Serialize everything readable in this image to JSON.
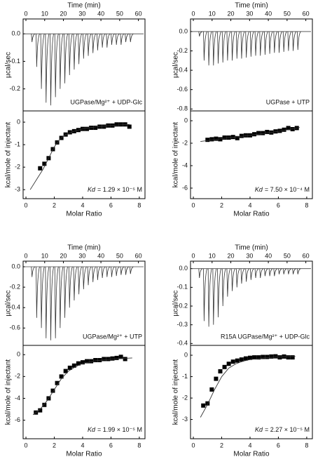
{
  "chart_data": [
    {
      "type": "peaks",
      "xlabel": "Time (min)",
      "ylabel": "µcal/sec",
      "annotation": "UGPase/Mg²⁺ + UDP-Glc",
      "xlim": [
        -1.5,
        63.5
      ],
      "xticks": [
        0,
        10,
        20,
        30,
        40,
        50,
        60
      ],
      "ylim": [
        -0.28,
        0.054
      ],
      "yticks": [
        {
          "value": 0,
          "label": "0.0"
        },
        -0.1,
        -0.2
      ],
      "x": [
        3,
        5.5,
        8,
        10.5,
        13,
        15.5,
        18,
        20.5,
        23,
        25.5,
        28,
        30.5,
        33,
        35.5,
        38,
        40.5,
        43,
        45.5,
        48,
        50.5,
        53,
        55.5
      ],
      "values": [
        -0.03,
        -0.12,
        -0.2,
        -0.25,
        -0.26,
        -0.23,
        -0.2,
        -0.18,
        -0.15,
        -0.13,
        -0.11,
        -0.09,
        -0.08,
        -0.07,
        -0.06,
        -0.05,
        -0.05,
        -0.04,
        -0.04,
        -0.04,
        -0.03,
        -0.03
      ]
    },
    {
      "type": "scatter",
      "xlabel": "Molar Ratio",
      "ylabel": "kcal/mole of injectant",
      "kd_symbol": "Kd",
      "kd_text": "= 1.29 × 10⁻⁵ M",
      "xlim": [
        -0.2,
        8.4
      ],
      "xticks": [
        0,
        2,
        4,
        6,
        8
      ],
      "ylim": [
        -3.4,
        0.5
      ],
      "yticks": [
        0,
        -1,
        -2,
        -3
      ],
      "series": [
        {
          "style": "marker",
          "x": [
            1.0,
            1.3,
            1.6,
            1.9,
            2.2,
            2.5,
            2.8,
            3.1,
            3.4,
            3.7,
            4.0,
            4.3,
            4.6,
            4.9,
            5.2,
            5.5,
            5.8,
            6.1,
            6.4,
            6.7,
            7.0,
            7.3
          ],
          "values": [
            -2.05,
            -1.85,
            -1.6,
            -1.2,
            -0.9,
            -0.7,
            -0.55,
            -0.45,
            -0.4,
            -0.35,
            -0.3,
            -0.3,
            -0.25,
            -0.25,
            -0.2,
            -0.2,
            -0.15,
            -0.15,
            -0.1,
            -0.1,
            -0.1,
            -0.2
          ]
        },
        {
          "style": "line",
          "x": [
            0.3,
            0.8,
            1.2,
            1.6,
            2.0,
            2.4,
            2.8,
            3.4,
            4,
            5,
            6,
            7.3
          ],
          "values": [
            -3.0,
            -2.5,
            -2.1,
            -1.6,
            -1.1,
            -0.75,
            -0.55,
            -0.4,
            -0.3,
            -0.2,
            -0.15,
            -0.1
          ]
        }
      ]
    },
    {
      "type": "peaks",
      "xlabel": "Time (min)",
      "ylabel": "µcal/sec",
      "annotation": "UGPase + UTP",
      "xlim": [
        -1.5,
        63.5
      ],
      "xticks": [
        0,
        10,
        20,
        30,
        40,
        50,
        60
      ],
      "ylim": [
        -0.82,
        0.13
      ],
      "yticks": [
        {
          "value": 0,
          "label": "0.0"
        },
        -0.2,
        -0.4,
        -0.6,
        -0.8
      ],
      "x": [
        3,
        5.5,
        8,
        10.5,
        13,
        15.5,
        18,
        20.5,
        23,
        25.5,
        28,
        30.5,
        33,
        35.5,
        38,
        40.5,
        43,
        45.5,
        48,
        50.5,
        53,
        55.5
      ],
      "values": [
        -0.05,
        -0.3,
        -0.35,
        -0.35,
        -0.33,
        -0.32,
        -0.3,
        -0.3,
        -0.28,
        -0.28,
        -0.27,
        -0.26,
        -0.25,
        -0.25,
        -0.24,
        -0.23,
        -0.22,
        -0.22,
        -0.21,
        -0.2,
        -0.2,
        -0.19
      ]
    },
    {
      "type": "scatter",
      "xlabel": "Molar Ratio",
      "ylabel": "kcal/mole of injectant",
      "kd_symbol": "Kd",
      "kd_text": "= 7.50 × 10⁻⁴ M",
      "xlim": [
        -0.2,
        8.4
      ],
      "xticks": [
        0,
        2,
        4,
        6,
        8
      ],
      "ylim": [
        -6.94,
        0.875
      ],
      "yticks": [
        0,
        -2,
        -4,
        -6
      ],
      "series": [
        {
          "style": "marker",
          "x": [
            1.0,
            1.3,
            1.6,
            1.9,
            2.2,
            2.5,
            2.8,
            3.1,
            3.4,
            3.7,
            4.0,
            4.3,
            4.6,
            4.9,
            5.2,
            5.5,
            5.8,
            6.1,
            6.4,
            6.7,
            7.0,
            7.3
          ],
          "values": [
            -1.7,
            -1.65,
            -1.6,
            -1.65,
            -1.5,
            -1.5,
            -1.45,
            -1.55,
            -1.35,
            -1.3,
            -1.3,
            -1.2,
            -1.1,
            -1.1,
            -1.0,
            -1.05,
            -0.95,
            -0.9,
            -0.8,
            -0.65,
            -0.75,
            -0.65
          ]
        },
        {
          "style": "line",
          "x": [
            0.5,
            2,
            4,
            6,
            7.5
          ],
          "values": [
            -1.85,
            -1.6,
            -1.3,
            -0.95,
            -0.6
          ]
        }
      ]
    },
    {
      "type": "peaks",
      "xlabel": "Time (min)",
      "ylabel": "µcal/sec",
      "annotation": "UGPase/Mg²⁺ + UTP",
      "xlim": [
        -1.5,
        63.5
      ],
      "xticks": [
        0,
        10,
        20,
        30,
        40,
        50,
        60
      ],
      "ylim": [
        -0.77,
        0.055
      ],
      "yticks": [
        {
          "value": 0,
          "label": "0.0"
        },
        -0.2,
        -0.4,
        -0.6
      ],
      "x": [
        3,
        5.5,
        8,
        10.5,
        13,
        15.5,
        18,
        20.5,
        23,
        25.5,
        28,
        30.5,
        33,
        35.5,
        38,
        40.5,
        43,
        45.5,
        48,
        50.5,
        53,
        55.5
      ],
      "values": [
        -0.1,
        -0.5,
        -0.6,
        -0.7,
        -0.72,
        -0.7,
        -0.6,
        -0.5,
        -0.4,
        -0.33,
        -0.27,
        -0.22,
        -0.18,
        -0.15,
        -0.13,
        -0.11,
        -0.1,
        -0.1,
        -0.09,
        -0.08,
        -0.08,
        -0.07
      ]
    },
    {
      "type": "scatter",
      "xlabel": "Molar Ratio",
      "ylabel": "kcal/mole of injectant",
      "kd_symbol": "Kd",
      "kd_text": "= 1.99 × 10⁻⁵ M",
      "xlim": [
        -0.2,
        8.4
      ],
      "xticks": [
        0,
        2,
        4,
        6,
        8
      ],
      "ylim": [
        -7.7,
        0.85
      ],
      "yticks": [
        0,
        -2,
        -4,
        -6
      ],
      "series": [
        {
          "style": "marker",
          "x": [
            0.7,
            1.0,
            1.3,
            1.6,
            1.9,
            2.2,
            2.5,
            2.8,
            3.1,
            3.4,
            3.7,
            4.0,
            4.3,
            4.6,
            4.9,
            5.2,
            5.5,
            5.8,
            6.1,
            6.4,
            6.7,
            7.0
          ],
          "values": [
            -5.3,
            -5.1,
            -4.6,
            -4.0,
            -3.3,
            -2.6,
            -2.0,
            -1.5,
            -1.2,
            -1.0,
            -0.8,
            -0.7,
            -0.6,
            -0.6,
            -0.5,
            -0.5,
            -0.4,
            -0.4,
            -0.35,
            -0.3,
            -0.2,
            -0.4
          ]
        },
        {
          "style": "line",
          "x": [
            0.5,
            1,
            1.5,
            2,
            2.5,
            3,
            3.5,
            4,
            5,
            6,
            7.5
          ],
          "values": [
            -5.5,
            -5.0,
            -4.2,
            -3.2,
            -2.2,
            -1.5,
            -1.1,
            -0.8,
            -0.55,
            -0.4,
            -0.3
          ]
        }
      ]
    },
    {
      "type": "peaks",
      "xlabel": "Time (min)",
      "ylabel": "µcal/sec",
      "annotation": "R15A UGPase/Mg²⁺ + UDP-Glc",
      "xlim": [
        -1.5,
        63.5
      ],
      "xticks": [
        0,
        10,
        20,
        30,
        40,
        50,
        60
      ],
      "ylim": [
        -0.41,
        0.04
      ],
      "yticks": [
        {
          "value": 0,
          "label": "0.0"
        },
        -0.1,
        -0.2,
        -0.3,
        -0.4
      ],
      "x": [
        3,
        5.5,
        8,
        10.5,
        13,
        15.5,
        18,
        20.5,
        23,
        25.5,
        28,
        30.5,
        33,
        35.5,
        38,
        40.5,
        43,
        45.5,
        48,
        50.5,
        53,
        55.5
      ],
      "values": [
        -0.05,
        -0.28,
        -0.31,
        -0.3,
        -0.26,
        -0.2,
        -0.15,
        -0.12,
        -0.1,
        -0.08,
        -0.07,
        -0.06,
        -0.05,
        -0.05,
        -0.04,
        -0.04,
        -0.04,
        -0.03,
        -0.03,
        -0.03,
        -0.03,
        -0.03
      ]
    },
    {
      "type": "scatter",
      "xlabel": "Molar Ratio",
      "ylabel": "kcal/mole of injectant",
      "kd_symbol": "Kd",
      "kd_text": "= 2.27 × 10⁻⁵ M",
      "xlim": [
        -0.2,
        8.4
      ],
      "xticks": [
        0,
        2,
        4,
        6,
        8
      ],
      "ylim": [
        -3.9,
        0.46
      ],
      "yticks": [
        0,
        -1,
        -2,
        -3
      ],
      "series": [
        {
          "style": "marker",
          "x": [
            0.7,
            1.0,
            1.3,
            1.6,
            1.9,
            2.2,
            2.5,
            2.8,
            3.1,
            3.4,
            3.7,
            4.0,
            4.3,
            4.6,
            4.9,
            5.2,
            5.5,
            5.8,
            6.1,
            6.4,
            6.7,
            7.0
          ],
          "values": [
            -2.35,
            -2.25,
            -1.6,
            -1.1,
            -0.75,
            -0.55,
            -0.4,
            -0.3,
            -0.25,
            -0.2,
            -0.15,
            -0.12,
            -0.1,
            -0.1,
            -0.08,
            -0.08,
            -0.06,
            -0.05,
            -0.1,
            -0.06,
            -0.1,
            -0.1
          ]
        },
        {
          "style": "line",
          "x": [
            0.5,
            1,
            1.5,
            2,
            2.5,
            3,
            3.5,
            4,
            5,
            6,
            7.2
          ],
          "values": [
            -2.9,
            -2.3,
            -1.6,
            -1.0,
            -0.6,
            -0.4,
            -0.28,
            -0.2,
            -0.12,
            -0.08,
            -0.06
          ]
        }
      ]
    }
  ]
}
